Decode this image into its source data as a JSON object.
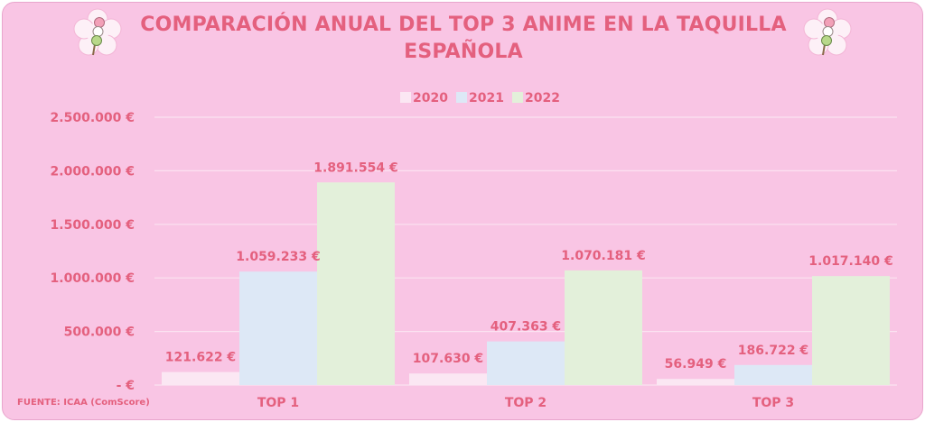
{
  "title": "COMPARACIÓN ANUAL DEL TOP 3 ANIME EN LA TAQUILLA ESPAÑOLA",
  "source": "FUENTE: ICAA (ComScore)",
  "colors": {
    "text": "#e4607e",
    "background": "#f9c5e4",
    "grid": "#fbe3f1",
    "series": [
      "#fbe7f3",
      "#dde8f6",
      "#e3f0da"
    ]
  },
  "chart_data": {
    "type": "bar",
    "title": "COMPARACIÓN ANUAL DEL TOP 3 ANIME EN LA TAQUILLA ESPAÑOLA",
    "categories": [
      "TOP 1",
      "TOP 2",
      "TOP 3"
    ],
    "series": [
      {
        "name": "2020",
        "values": [
          121622,
          107630,
          56949
        ],
        "labels": [
          "121.622 €",
          "107.630 €",
          "56.949 €"
        ]
      },
      {
        "name": "2021",
        "values": [
          1059233,
          407363,
          186722
        ],
        "labels": [
          "1.059.233 €",
          "407.363 €",
          "186.722 €"
        ]
      },
      {
        "name": "2022",
        "values": [
          1891554,
          1070181,
          1017140
        ],
        "labels": [
          "1.891.554 €",
          "1.070.181 €",
          "1.017.140 €"
        ]
      }
    ],
    "ylim": [
      0,
      2500000
    ],
    "yticks": [
      0,
      500000,
      1000000,
      1500000,
      2000000,
      2500000
    ],
    "ytick_labels": [
      "- €",
      "500.000 €",
      "1.000.000 €",
      "1.500.000 €",
      "2.000.000 €",
      "2.500.000 €"
    ],
    "xlabel": "",
    "ylabel": "",
    "legend": "top-center",
    "grid": true
  }
}
